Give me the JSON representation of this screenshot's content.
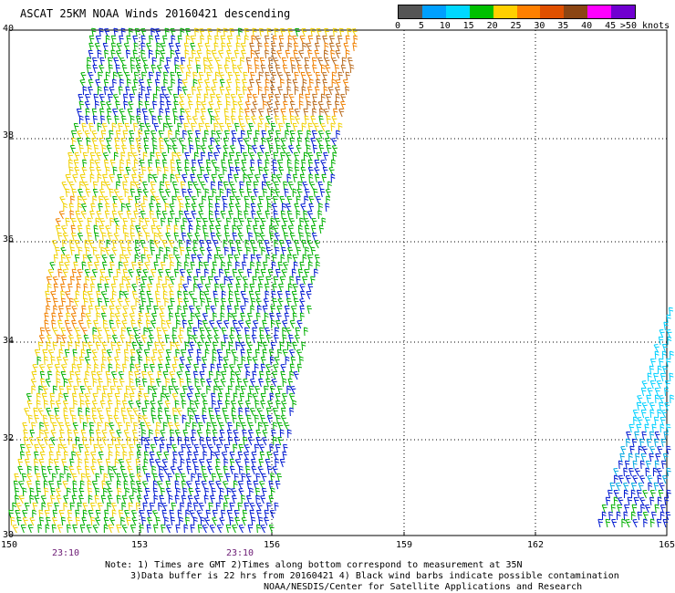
{
  "title": "ASCAT 25KM NOAA Winds 20160421 descending",
  "legend": {
    "colors": [
      "#555555",
      "#00a0ff",
      "#00d8ff",
      "#00c000",
      "#ffd000",
      "#ff8000",
      "#e05000",
      "#8b4513",
      "#ff00ff",
      "#7000d0"
    ],
    "labels": [
      "0",
      "5",
      "10",
      "15",
      "20",
      "25",
      "30",
      "35",
      "40",
      "45",
      ">50 knots"
    ]
  },
  "axes": {
    "lat_labels": [
      "40",
      "38",
      "36",
      "34",
      "32",
      "30"
    ],
    "lon_labels": [
      "150",
      "153",
      "156",
      "159",
      "162",
      "165"
    ]
  },
  "timestamps": [
    "23:10",
    "23:10"
  ],
  "footer": {
    "line1": "Note: 1) Times are GMT 2)Times along bottom correspond to measurement at 35N",
    "line2": "3)Data buffer is 22 hrs from 20160421 4) Black wind barbs indicate possible contamination",
    "line3": "NOAA/NESDIS/Center for Satellite Applications and Research"
  }
}
